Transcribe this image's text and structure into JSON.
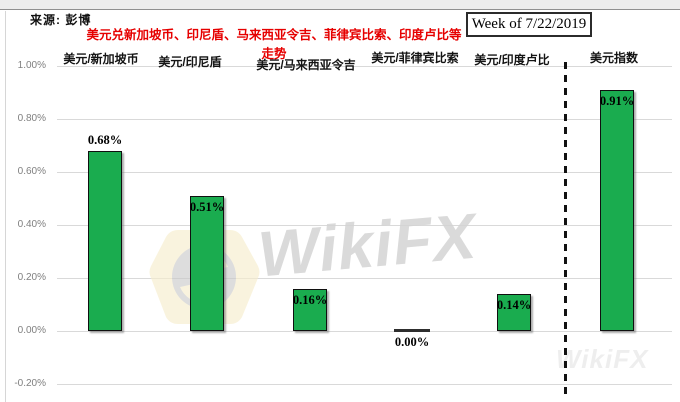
{
  "window": {
    "source_label": "来源: 彭博",
    "week_label": "Week of 7/22/2019"
  },
  "watermark": {
    "text": "WikiFX",
    "ghost_text": "WikiFX",
    "logo_icon": "wikifx-lion-hexagon"
  },
  "colors": {
    "bar_fill": "#1aac4f",
    "bar_border": "#101010",
    "title_red": "#e60000",
    "gridline": "#d9d9d9",
    "tick_text": "#7f7f7f",
    "separator": "#111111"
  },
  "chart_data": {
    "type": "bar",
    "title": "美元兑新加坡币、印尼盾、马来西亚令吉、菲律宾比索、印度卢比等走势",
    "categories": [
      "美元/新加坡币",
      "美元/印尼盾",
      "美元/马来西亚令吉",
      "美元/菲律宾比索",
      "美元/印度卢比",
      "美元指数"
    ],
    "values": [
      0.68,
      0.51,
      0.16,
      0.0,
      0.14,
      0.91
    ],
    "data_labels": [
      "0.68%",
      "0.51%",
      "0.16%",
      "0.00%",
      "0.14%",
      "0.91%"
    ],
    "value_label_placement": [
      "above",
      "inside",
      "inside",
      "below",
      "inside",
      "inside"
    ],
    "y_ticks": [
      "1.00%",
      "0.80%",
      "0.60%",
      "0.40%",
      "0.20%",
      "0.00%",
      "-0.20%"
    ],
    "y_tick_values": [
      1.0,
      0.8,
      0.6,
      0.4,
      0.2,
      0.0,
      -0.2
    ],
    "ylim": [
      -0.2,
      1.0
    ],
    "grid": true,
    "xlabel": "",
    "ylabel": "",
    "separator": {
      "style": "dashed",
      "between": [
        "美元/印度卢比",
        "美元指数"
      ]
    }
  }
}
